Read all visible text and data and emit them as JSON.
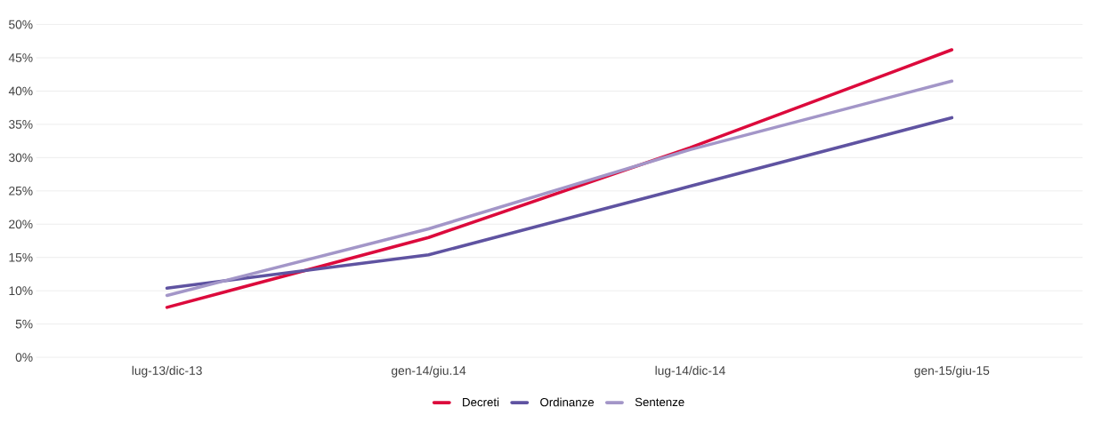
{
  "chart_data": {
    "type": "line",
    "categories": [
      "lug-13/dic-13",
      "gen-14/giu.14",
      "lug-14/dic-14",
      "gen-15/giu-15"
    ],
    "series": [
      {
        "name": "Decreti",
        "color": "#dc0a3c",
        "values": [
          7.5,
          18.0,
          31.5,
          46.2
        ]
      },
      {
        "name": "Ordinanze",
        "color": "#5f53a1",
        "values": [
          10.4,
          15.4,
          25.7,
          36.0
        ]
      },
      {
        "name": "Sentenze",
        "color": "#a396c8",
        "values": [
          9.3,
          19.3,
          31.2,
          41.5
        ]
      }
    ],
    "ylim": [
      0,
      50
    ],
    "yticks": [
      {
        "value": 0,
        "label": "0%"
      },
      {
        "value": 5,
        "label": "5%"
      },
      {
        "value": 10,
        "label": "10%"
      },
      {
        "value": 15,
        "label": "15%"
      },
      {
        "value": 20,
        "label": "20%"
      },
      {
        "value": 25,
        "label": "25%"
      },
      {
        "value": 30,
        "label": "30%"
      },
      {
        "value": 35,
        "label": "35%"
      },
      {
        "value": 40,
        "label": "40%"
      },
      {
        "value": 45,
        "label": "45%"
      },
      {
        "value": 50,
        "label": "50%"
      }
    ],
    "grid": "y",
    "legend": "bottom",
    "marker": "none",
    "line_style": "solid"
  }
}
